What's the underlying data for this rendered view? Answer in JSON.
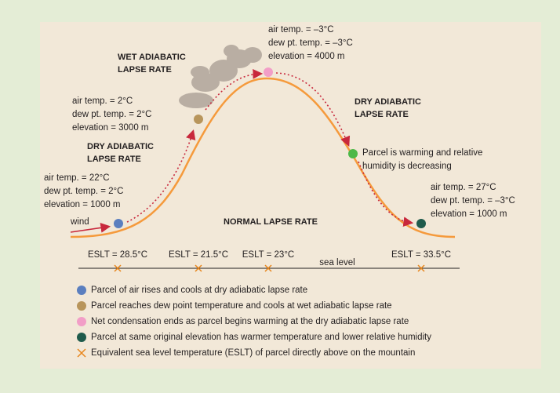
{
  "rate_labels": [
    [
      "WET ADIABATIC",
      "LAPSE RATE"
    ],
    [
      "DRY ADIABATIC",
      "LAPSE RATE"
    ],
    [
      "DRY ADIABATIC",
      "LAPSE RATE"
    ],
    [
      "NORMAL LAPSE RATE"
    ]
  ],
  "parcel_notes": [
    [
      "air temp. = 22°C",
      "dew pt. temp. = 2°C",
      "elevation = 1000 m"
    ],
    [
      "air temp. = 2°C",
      "dew pt. temp. = 2°C",
      "elevation = 3000 m"
    ],
    [
      "air temp. = –3°C",
      "dew pt. temp. = –3°C",
      "elevation = 4000 m"
    ],
    [
      "Parcel is warming and relative",
      "humidity is decreasing"
    ],
    [
      "air temp. = 27°C",
      "dew pt. temp. = –3°C",
      "elevation = 1000 m"
    ]
  ],
  "wind": "wind",
  "sea_level": "sea level",
  "eslt": [
    "ESLT = 28.5°C",
    "ESLT = 21.5°C",
    "ESLT = 23°C",
    "ESLT = 33.5°C"
  ],
  "legend": [
    "Parcel of air rises and cools at dry adiabatic lapse rate",
    "Parcel reaches dew point temperature and cools at wet adiabatic lapse rate",
    "Net condensation ends as parcel begins warming at the dry adiabatic lapse rate",
    "Parcel at same original elevation has warmer temperature and lower relative humidity",
    "Equivalent sea level temperature (ESLT) of parcel directly above on the mountain"
  ]
}
